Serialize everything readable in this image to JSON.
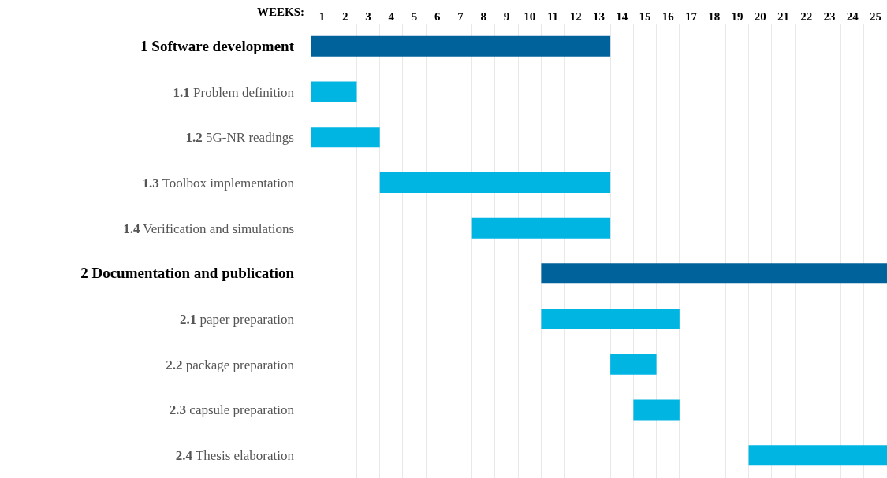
{
  "chart_data": {
    "type": "bar",
    "orientation": "horizontal",
    "xlabel": "WEEKS:",
    "categories": [
      "1 Software development",
      "1.1 Problem definition",
      "1.2 5G-NR readings",
      "1.3 Toolbox implementation",
      "1.4 Verification and simulations",
      "2 Documentation and publication",
      "2.1 paper preparation",
      "2.2 package preparation",
      "2.3 capsule preparation",
      "2.4 Thesis elaboration"
    ],
    "base": [
      0,
      0,
      0,
      3,
      7,
      10,
      10,
      13,
      14,
      19
    ],
    "values": [
      13,
      2,
      3,
      10,
      6,
      15,
      6,
      2,
      2,
      6
    ],
    "colors": [
      "#00629b",
      "#00b5e2",
      "#00b5e2",
      "#00b5e2",
      "#00b5e2",
      "#00629b",
      "#00b5e2",
      "#00b5e2",
      "#00b5e2",
      "#00b5e2"
    ],
    "xlim": [
      0,
      25
    ],
    "xticks": [
      {
        "value": 0.5,
        "label": "1"
      },
      {
        "value": 1.5,
        "label": "2"
      },
      {
        "value": 2.5,
        "label": "3"
      },
      {
        "value": 3.5,
        "label": "4"
      },
      {
        "value": 4.5,
        "label": "5"
      },
      {
        "value": 5.5,
        "label": "6"
      },
      {
        "value": 6.5,
        "label": "7"
      },
      {
        "value": 7.5,
        "label": "8"
      },
      {
        "value": 8.5,
        "label": "9"
      },
      {
        "value": 9.5,
        "label": "10"
      },
      {
        "value": 10.5,
        "label": "11"
      },
      {
        "value": 11.5,
        "label": "12"
      },
      {
        "value": 12.5,
        "label": "13"
      },
      {
        "value": 13.5,
        "label": "14"
      },
      {
        "value": 14.5,
        "label": "15"
      },
      {
        "value": 15.5,
        "label": "16"
      },
      {
        "value": 16.5,
        "label": "17"
      },
      {
        "value": 17.5,
        "label": "18"
      },
      {
        "value": 18.5,
        "label": "19"
      },
      {
        "value": 19.5,
        "label": "20"
      },
      {
        "value": 20.5,
        "label": "21"
      },
      {
        "value": 21.5,
        "label": "22"
      },
      {
        "value": 22.5,
        "label": "23"
      },
      {
        "value": 23.5,
        "label": "24"
      },
      {
        "value": 24.5,
        "label": "25"
      }
    ],
    "grid": "x"
  }
}
